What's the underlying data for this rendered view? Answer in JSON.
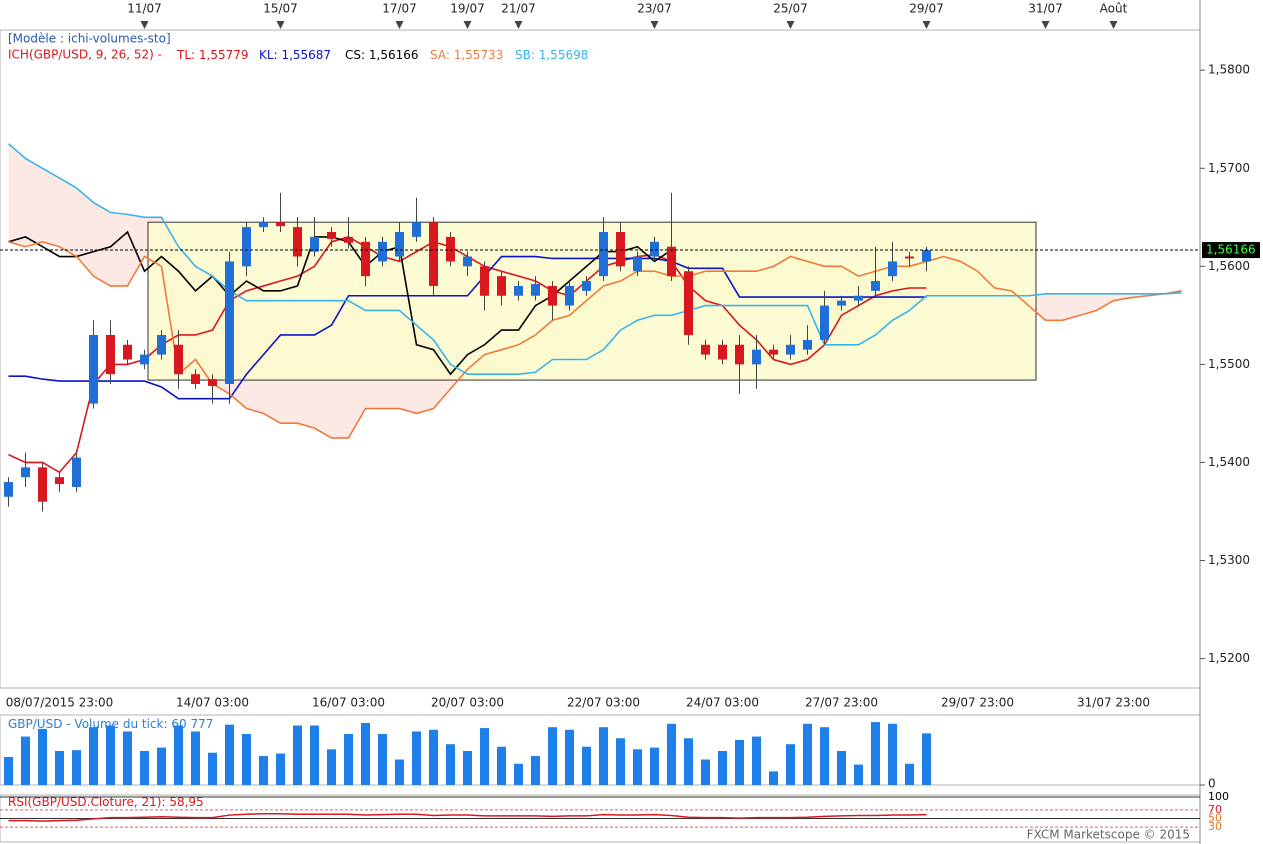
{
  "chart_data": {
    "type": "candlestick",
    "model": "[Modèle : ichi-volumes-sto]",
    "indicator": "ICH(GBP/USD, 9, 26, 52) -",
    "categories": [
      null,
      null,
      null,
      "08/07/2015 23:00",
      null,
      null,
      null,
      null,
      null,
      null,
      null,
      null,
      "14/07 03:00",
      null,
      null,
      null,
      null,
      null,
      null,
      null,
      "16/07 03:00",
      null,
      null,
      null,
      null,
      null,
      null,
      "20/07 03:00",
      null,
      null,
      null,
      null,
      null,
      null,
      null,
      "22/07 03:00",
      null,
      null,
      null,
      null,
      null,
      null,
      "24/07 03:00",
      null,
      null,
      null,
      null,
      null,
      null,
      "27/07 23:00",
      null,
      null,
      null,
      null,
      null,
      null,
      null,
      "29/07 23:00",
      null,
      null,
      null,
      null,
      null,
      null,
      null,
      "31/07 23:00",
      null,
      null,
      null,
      null
    ],
    "date_markers": [
      null,
      null,
      null,
      null,
      null,
      null,
      null,
      null,
      "11/07",
      null,
      null,
      null,
      null,
      null,
      null,
      null,
      "15/07",
      null,
      null,
      null,
      null,
      null,
      null,
      "17/07",
      null,
      null,
      null,
      "19/07",
      null,
      null,
      "21/07",
      null,
      null,
      null,
      null,
      null,
      null,
      null,
      "23/07",
      null,
      null,
      null,
      null,
      null,
      null,
      null,
      "25/07",
      null,
      null,
      null,
      null,
      null,
      null,
      null,
      "29/07",
      null,
      null,
      null,
      null,
      null,
      null,
      "31/07",
      null,
      null,
      null,
      "Août",
      null,
      null,
      null,
      null
    ],
    "up_color": "#1f6fd6",
    "down_color": "#d8171e",
    "open": [
      1.5365,
      1.5385,
      1.5395,
      1.5385,
      1.5375,
      1.546,
      1.553,
      1.552,
      1.55,
      1.551,
      1.552,
      1.549,
      1.5485,
      1.548,
      1.56,
      1.564,
      1.5645,
      1.564,
      1.5615,
      1.5635,
      1.563,
      1.5625,
      1.5605,
      1.561,
      1.563,
      1.5645,
      1.563,
      1.56,
      1.56,
      1.559,
      1.557,
      1.557,
      1.558,
      1.556,
      1.5575,
      1.559,
      1.5635,
      1.5595,
      1.561,
      1.562,
      1.5595,
      1.552,
      1.552,
      1.552,
      1.55,
      1.5515,
      1.551,
      1.5515,
      1.5525,
      1.556,
      1.5565,
      1.5575,
      1.559,
      1.561,
      1.5605,
      null,
      null,
      null,
      null,
      null,
      null,
      null,
      null,
      null,
      null,
      null,
      null,
      null,
      null,
      null
    ],
    "high": [
      1.5385,
      1.541,
      1.54,
      1.539,
      1.541,
      1.5545,
      1.5545,
      1.5525,
      1.5515,
      1.5535,
      1.5535,
      1.5495,
      1.549,
      1.5615,
      1.5645,
      1.565,
      1.5675,
      1.565,
      1.565,
      1.564,
      1.565,
      1.563,
      1.563,
      1.5645,
      1.567,
      1.565,
      1.5635,
      1.5615,
      1.5605,
      1.5595,
      1.5585,
      1.559,
      1.5585,
      1.5585,
      1.559,
      1.565,
      1.5645,
      1.5615,
      1.563,
      1.5675,
      1.56,
      1.5525,
      1.5525,
      1.553,
      1.553,
      1.552,
      1.553,
      1.554,
      1.5575,
      1.557,
      1.558,
      1.562,
      1.5625,
      1.5615,
      1.562,
      null,
      null,
      null,
      null,
      null,
      null,
      null,
      null,
      null,
      null,
      null,
      null,
      null,
      null,
      null
    ],
    "low": [
      1.5355,
      1.5375,
      1.535,
      1.537,
      1.537,
      1.5455,
      1.548,
      1.55,
      1.5495,
      1.5505,
      1.5475,
      1.5475,
      1.546,
      1.546,
      1.559,
      1.5635,
      1.5635,
      1.56,
      1.561,
      1.562,
      1.5618,
      1.558,
      1.56,
      1.5605,
      1.5625,
      1.557,
      1.56,
      1.559,
      1.5555,
      1.556,
      1.5565,
      1.5565,
      1.5545,
      1.5555,
      1.557,
      1.5585,
      1.5595,
      1.559,
      1.5605,
      1.5585,
      1.552,
      1.5505,
      1.55,
      1.547,
      1.5475,
      1.5505,
      1.5505,
      1.551,
      1.552,
      1.5555,
      1.556,
      1.557,
      1.5585,
      1.56,
      1.5595,
      null,
      null,
      null,
      null,
      null,
      null,
      null,
      null,
      null,
      null,
      null,
      null,
      null,
      null,
      null
    ],
    "close": [
      1.538,
      1.5395,
      1.536,
      1.5378,
      1.5405,
      1.553,
      1.549,
      1.5505,
      1.551,
      1.553,
      1.549,
      1.548,
      1.5478,
      1.5605,
      1.564,
      1.5645,
      1.5641,
      1.561,
      1.563,
      1.5628,
      1.5624,
      1.559,
      1.5625,
      1.5635,
      1.5645,
      1.558,
      1.5605,
      1.561,
      1.557,
      1.557,
      1.558,
      1.5582,
      1.556,
      1.558,
      1.5585,
      1.5635,
      1.56,
      1.561,
      1.5625,
      1.559,
      1.553,
      1.551,
      1.5505,
      1.55,
      1.5515,
      1.551,
      1.552,
      1.5525,
      1.556,
      1.5565,
      1.557,
      1.5585,
      1.5605,
      1.5608,
      1.56166,
      null,
      null,
      null,
      null,
      null,
      null,
      null,
      null,
      null,
      null,
      null,
      null,
      null,
      null,
      null
    ],
    "series": [
      {
        "name": "TL:",
        "color": "#d8171e",
        "last_value": 1.55779,
        "last_label": "1,55779",
        "values": [
          1.5408,
          1.54,
          1.54,
          1.539,
          1.541,
          1.548,
          1.55,
          1.55,
          1.5505,
          1.552,
          1.553,
          1.553,
          1.5535,
          1.5565,
          1.5575,
          1.558,
          1.5585,
          1.559,
          1.56,
          1.5625,
          1.563,
          1.562,
          1.561,
          1.5605,
          1.5615,
          1.5625,
          1.562,
          1.561,
          1.56,
          1.5595,
          1.559,
          1.5585,
          1.5575,
          1.557,
          1.5585,
          1.56,
          1.5605,
          1.561,
          1.5612,
          1.5605,
          1.558,
          1.5565,
          1.556,
          1.554,
          1.5525,
          1.5505,
          1.55,
          1.5505,
          1.552,
          1.555,
          1.556,
          1.557,
          1.5575,
          1.55779,
          1.55779,
          null,
          null,
          null,
          null,
          null,
          null,
          null,
          null,
          null,
          null,
          null,
          null,
          null,
          null,
          null
        ]
      },
      {
        "name": "KL:",
        "color": "#0a14c8",
        "last_value": 1.55687,
        "last_label": "1,55687",
        "values": [
          1.5488,
          1.5488,
          1.5485,
          1.5483,
          1.5483,
          1.5483,
          1.5483,
          1.5483,
          1.5483,
          1.5477,
          1.5465,
          1.5465,
          1.5465,
          1.5465,
          1.549,
          1.551,
          1.553,
          1.553,
          1.553,
          1.554,
          1.557,
          1.557,
          1.557,
          1.557,
          1.557,
          1.557,
          1.557,
          1.557,
          1.559,
          1.561,
          1.561,
          1.561,
          1.5608,
          1.5608,
          1.5608,
          1.5608,
          1.5608,
          1.5608,
          1.5608,
          1.5605,
          1.5598,
          1.5598,
          1.5598,
          1.55687,
          1.55687,
          1.55687,
          1.55687,
          1.55687,
          1.55687,
          1.55687,
          1.55687,
          1.55687,
          1.55687,
          1.55687,
          1.55687,
          null,
          null,
          null,
          null,
          null,
          null,
          null,
          null,
          null,
          null,
          null,
          null,
          null,
          null,
          null
        ]
      },
      {
        "name": "CS:",
        "color": "#000000",
        "last_value": 1.56166,
        "last_label": "1,56166",
        "values": [
          1.5625,
          1.563,
          1.562,
          1.561,
          1.561,
          1.5615,
          1.562,
          1.5635,
          1.5595,
          1.561,
          1.5595,
          1.5575,
          1.559,
          1.557,
          1.5585,
          1.5575,
          1.5575,
          1.558,
          1.563,
          1.563,
          1.5625,
          1.56,
          1.5615,
          1.562,
          1.552,
          1.5515,
          1.549,
          1.551,
          1.552,
          1.5535,
          1.5535,
          1.556,
          1.557,
          1.5585,
          1.56,
          1.5615,
          1.5615,
          1.562,
          1.5605,
          1.56166,
          null,
          null,
          null,
          null,
          null,
          null,
          null,
          null,
          null,
          null,
          null,
          null,
          null,
          null,
          null,
          null,
          null,
          null,
          null,
          null,
          null,
          null,
          null,
          null,
          null,
          null,
          null,
          null,
          null,
          null
        ]
      },
      {
        "name": "SA:",
        "color": "#f07a3c",
        "last_value": 1.55733,
        "last_label": "1,55733",
        "values": [
          1.5625,
          1.562,
          1.5625,
          1.562,
          1.561,
          1.559,
          1.558,
          1.558,
          1.561,
          1.56,
          1.549,
          1.5505,
          1.548,
          1.547,
          1.5455,
          1.545,
          1.544,
          1.544,
          1.5435,
          1.5425,
          1.5425,
          1.5455,
          1.5455,
          1.5455,
          1.545,
          1.5455,
          1.5475,
          1.5495,
          1.551,
          1.5515,
          1.552,
          1.553,
          1.5545,
          1.555,
          1.5565,
          1.558,
          1.5585,
          1.5595,
          1.5595,
          1.559,
          1.559,
          1.5595,
          1.5595,
          1.5595,
          1.5595,
          1.56,
          1.561,
          1.5605,
          1.56,
          1.56,
          1.559,
          1.5595,
          1.56,
          1.56,
          1.5605,
          1.561,
          1.5605,
          1.5595,
          1.5578,
          1.5575,
          1.556,
          1.5545,
          1.5545,
          1.555,
          1.5555,
          1.5565,
          1.5568,
          1.557,
          1.5572,
          1.5575
        ]
      },
      {
        "name": "SB:",
        "color": "#38b4ec",
        "last_value": 1.55698,
        "last_label": "1,55698",
        "values": [
          1.5725,
          1.571,
          1.57,
          1.569,
          1.568,
          1.5665,
          1.5655,
          1.5653,
          1.565,
          1.565,
          1.562,
          1.56,
          1.559,
          1.5575,
          1.5565,
          1.5565,
          1.5565,
          1.5565,
          1.5565,
          1.5565,
          1.5565,
          1.5555,
          1.5555,
          1.5555,
          1.554,
          1.5525,
          1.55,
          1.549,
          1.549,
          1.549,
          1.549,
          1.5492,
          1.5505,
          1.5505,
          1.5505,
          1.5515,
          1.5535,
          1.5545,
          1.555,
          1.555,
          1.5555,
          1.556,
          1.556,
          1.556,
          1.556,
          1.556,
          1.556,
          1.556,
          1.552,
          1.552,
          1.552,
          1.553,
          1.5545,
          1.5555,
          1.557,
          1.557,
          1.557,
          1.557,
          1.557,
          1.557,
          1.557,
          1.5572,
          1.5572,
          1.5572,
          1.5572,
          1.5572,
          1.5572,
          1.5572,
          1.5572,
          1.5573
        ]
      }
    ],
    "last_price": {
      "value": 1.56166,
      "label": "1,56166"
    },
    "box": {
      "high": 1.5645,
      "low": 1.5484
    },
    "ylim": [
      1.517,
      1.5841
    ],
    "yticks": [
      {
        "value": 1.52,
        "label": "1,5200"
      },
      {
        "value": 1.53,
        "label": "1,5300"
      },
      {
        "value": 1.54,
        "label": "1,5400"
      },
      {
        "value": 1.55,
        "label": "1,5500"
      },
      {
        "value": 1.56,
        "label": "1,5600"
      },
      {
        "value": 1.57,
        "label": "1,5700"
      },
      {
        "value": 1.58,
        "label": "1,5800"
      }
    ],
    "volume": {
      "title": "GBP/USD - Volume du tick:",
      "last_label": "60 777",
      "color": "#1f7fe8",
      "values": [
        33000,
        57000,
        66000,
        40000,
        41000,
        68000,
        70000,
        63000,
        40000,
        44000,
        70000,
        63000,
        38000,
        71000,
        60000,
        34000,
        37000,
        70000,
        70000,
        42000,
        60000,
        73000,
        60000,
        30000,
        63000,
        65000,
        48000,
        40000,
        67000,
        45000,
        25000,
        34000,
        68000,
        65000,
        45000,
        68000,
        55000,
        42000,
        44000,
        72000,
        55000,
        30000,
        40000,
        53000,
        57000,
        16000,
        48000,
        72000,
        68000,
        40000,
        24000,
        74000,
        72000,
        25000,
        60777,
        null,
        null,
        null,
        null,
        null,
        null,
        null,
        null,
        null,
        null,
        null,
        null,
        null,
        null,
        null
      ],
      "ylim": [
        0,
        80000
      ],
      "yticks": [
        0
      ]
    },
    "rsi": {
      "title": "RSI(GBP/USD.Cloture, 21):",
      "last_value": 58.95,
      "last_label": "58,95",
      "color": "#d8171e",
      "values": [
        45,
        45,
        44,
        45,
        46,
        49,
        52,
        52,
        53,
        54,
        53,
        52,
        52,
        58,
        60,
        61,
        61,
        60,
        60,
        60,
        60,
        58,
        59,
        60,
        60,
        57,
        58,
        58,
        56,
        56,
        56,
        56,
        55,
        56,
        56,
        59,
        58,
        58,
        59,
        57,
        53,
        52,
        52,
        51,
        52,
        52,
        52,
        53,
        55,
        56,
        57,
        57,
        58,
        58,
        58.95,
        null,
        null,
        null,
        null,
        null,
        null,
        null,
        null,
        null,
        null,
        null,
        null,
        null,
        null,
        null
      ],
      "ylim": [
        0,
        100
      ],
      "yticks": [
        100,
        70,
        50,
        30
      ]
    },
    "footer": "FXCM Marketscope © 2015"
  }
}
